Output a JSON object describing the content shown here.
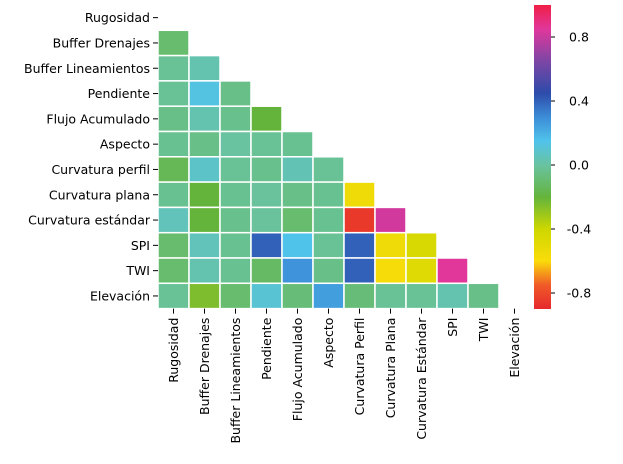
{
  "chart_data": {
    "type": "heatmap",
    "title": "",
    "xlabel": "",
    "ylabel": "",
    "row_labels": [
      "Rugosidad",
      "Buffer Drenajes",
      "Buffer Lineamientos",
      "Pendiente",
      "Flujo Acumulado",
      "Aspecto",
      "Curvatura perfil",
      "Curvatura plana",
      "Curvatura estándar",
      "SPI",
      "TWI",
      "Elevación"
    ],
    "col_labels": [
      "Rugosidad",
      "Buffer Drenajes",
      "Buffer Lineamientos",
      "Pendiente",
      "Flujo Acumulado",
      "Aspecto",
      "Curvatura Perfil",
      "Curvatura Plana",
      "Curvatura Estándar",
      "SPI",
      "TWI",
      "Elevación"
    ],
    "mask": "upper-triangle-including-diagonal",
    "values": [
      [],
      [
        -0.1
      ],
      [
        -0.02,
        0.03
      ],
      [
        -0.02,
        0.13,
        -0.05
      ],
      [
        -0.05,
        0.03,
        -0.04,
        -0.2
      ],
      [
        -0.03,
        -0.05,
        0.0,
        -0.02,
        -0.03
      ],
      [
        -0.15,
        0.08,
        -0.02,
        -0.04,
        0.04,
        -0.02
      ],
      [
        -0.03,
        -0.2,
        -0.03,
        -0.01,
        -0.05,
        -0.03,
        -0.55
      ],
      [
        0.05,
        -0.2,
        -0.04,
        -0.01,
        -0.1,
        -0.03,
        -0.85,
        0.82
      ],
      [
        -0.1,
        0.05,
        -0.03,
        0.4,
        0.15,
        -0.02,
        0.4,
        -0.55,
        -0.45
      ],
      [
        -0.1,
        0.03,
        -0.03,
        -0.12,
        0.28,
        -0.05,
        0.4,
        -0.58,
        -0.48,
        0.85
      ],
      [
        -0.02,
        -0.25,
        -0.1,
        0.1,
        -0.08,
        0.25,
        -0.08,
        -0.02,
        -0.02,
        0.03,
        -0.05
      ]
    ],
    "vmin": -0.9,
    "vmax": 1.0,
    "colormap": "red-yellow-green-cyan-blue-purple-magenta",
    "colorbar_ticks": [
      0.8,
      0.4,
      0.0,
      -0.4,
      -0.8
    ],
    "colorbar_tick_labels": [
      "0.8",
      "0.4",
      "0.0",
      "-0.4",
      "-0.8"
    ],
    "grid_line_color": "#ffffff"
  }
}
